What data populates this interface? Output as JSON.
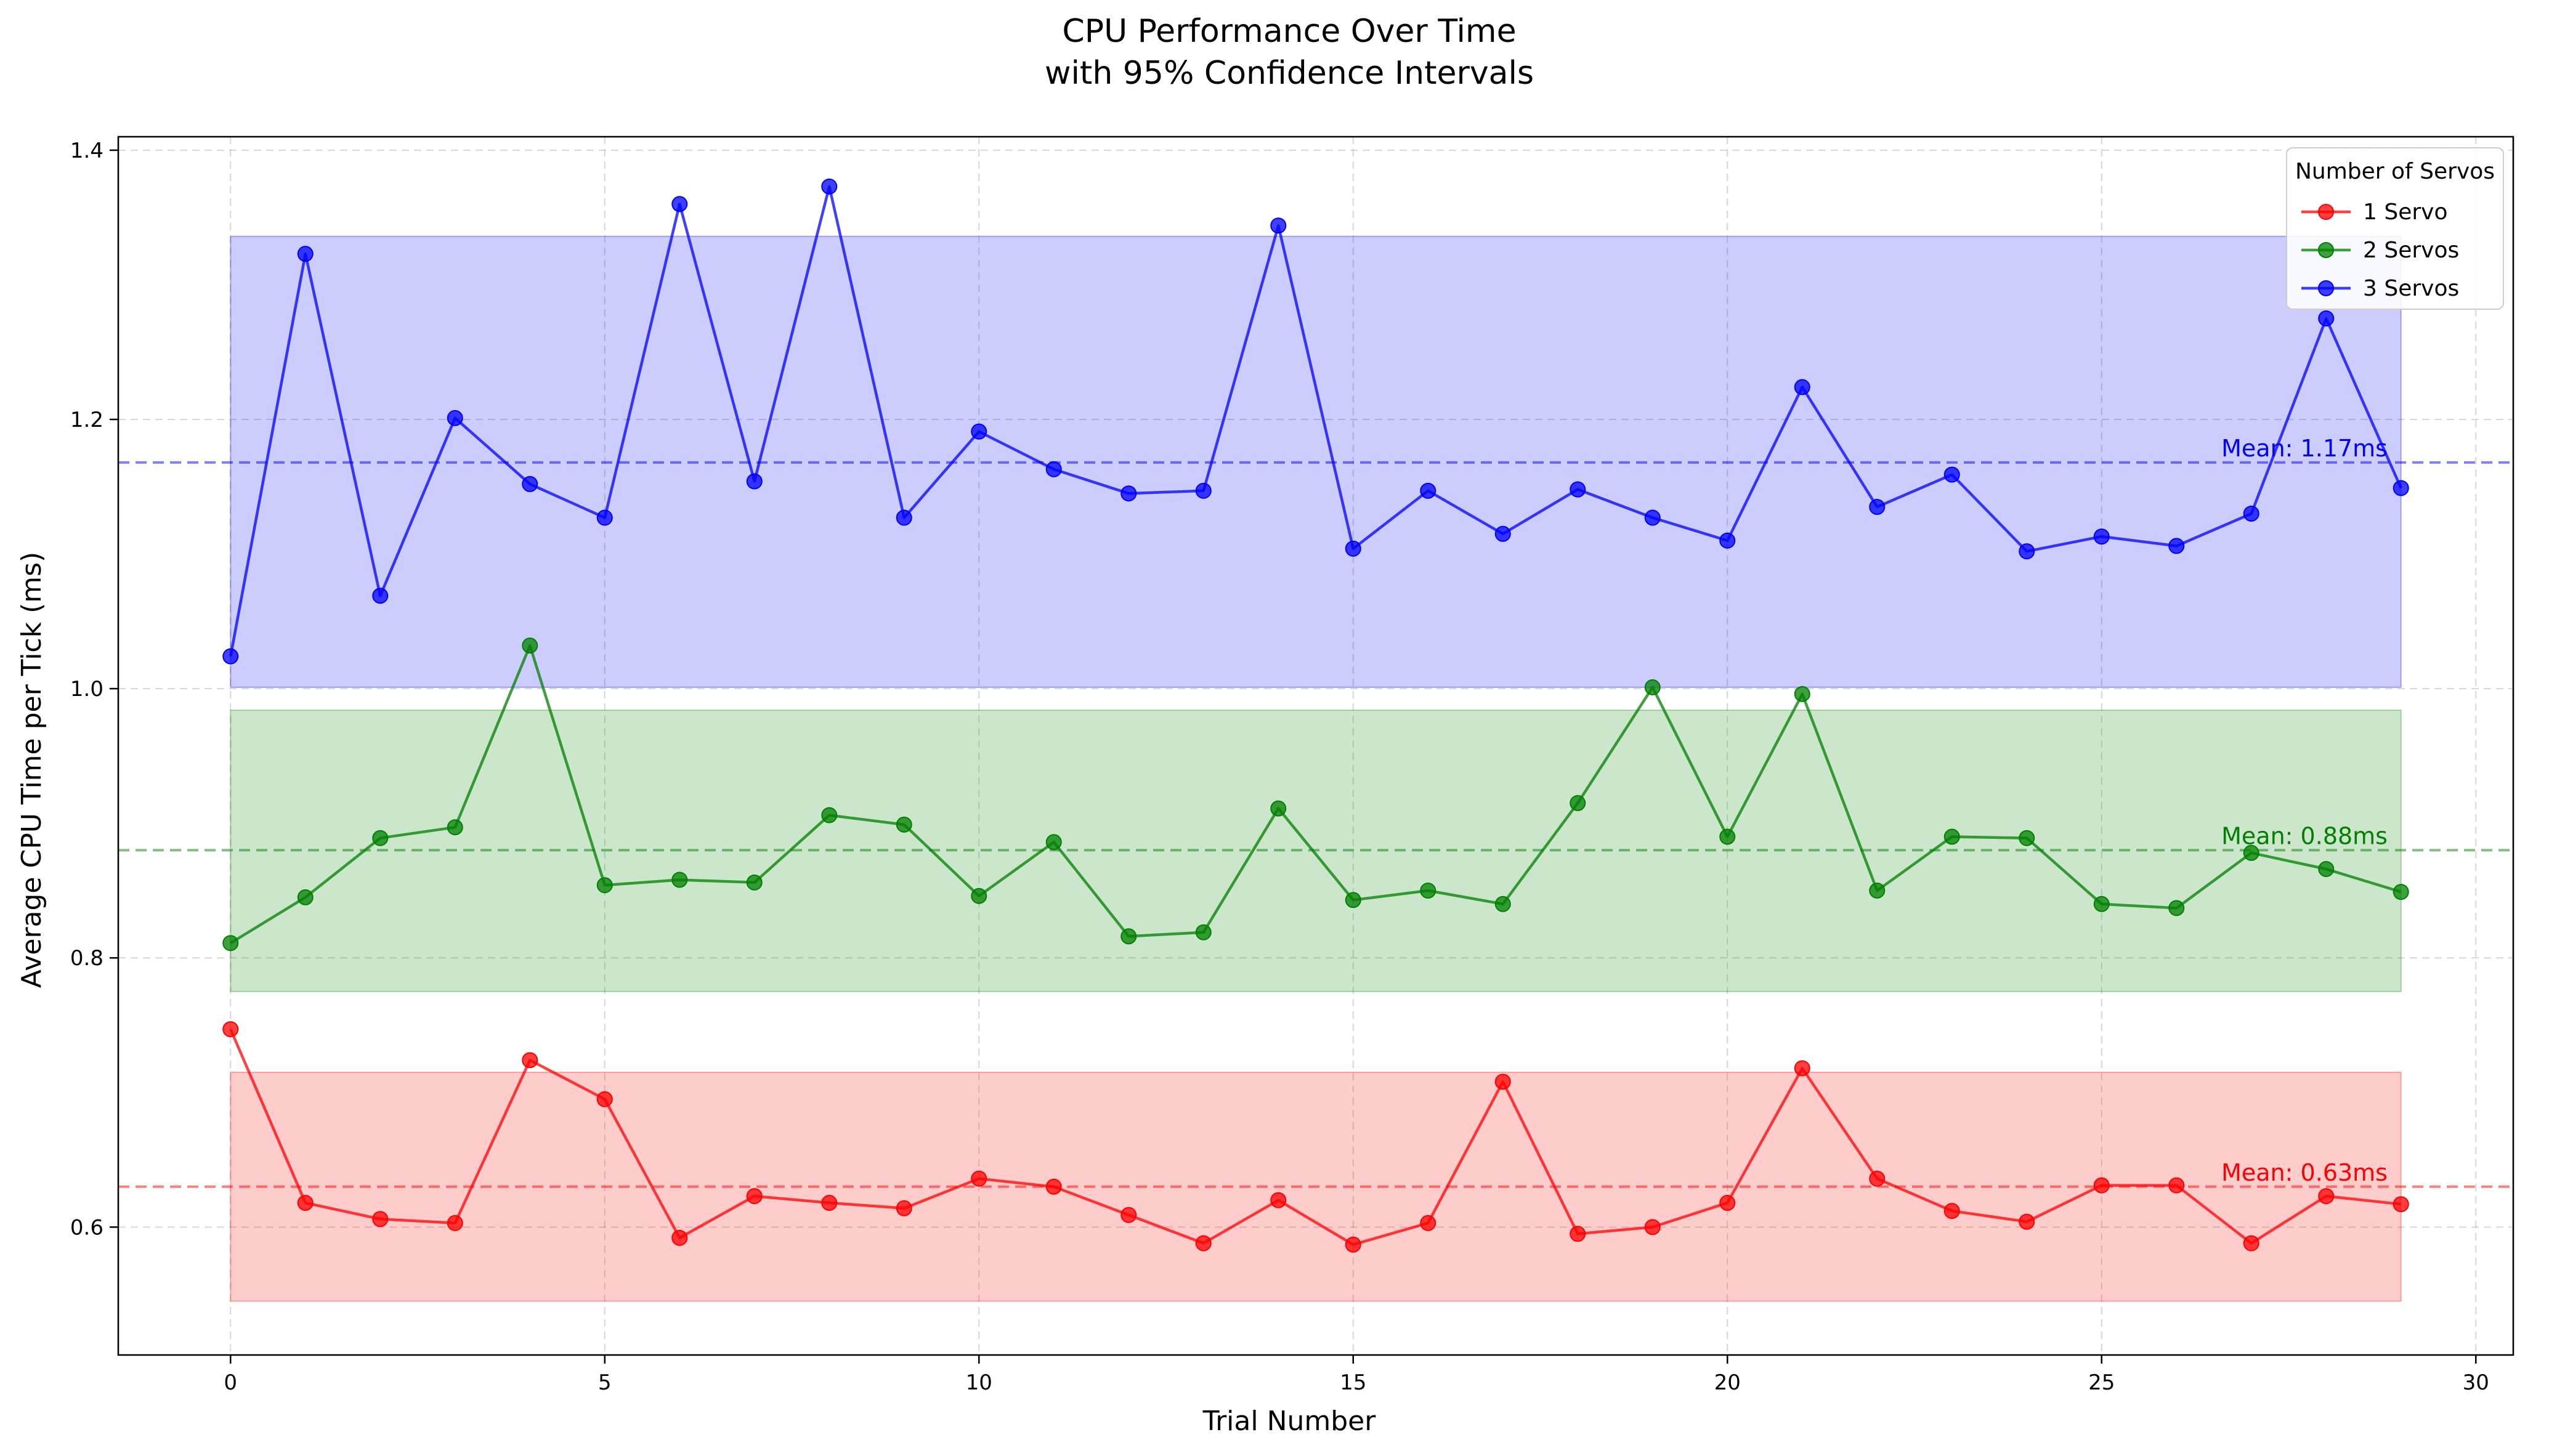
{
  "chart_data": {
    "type": "line",
    "title": "CPU Performance Over Time",
    "subtitle": "with 95% Confidence Intervals",
    "xlabel": "Trial Number",
    "ylabel": "Average CPU Time per Tick (ms)",
    "xlim": [
      -1.5,
      30.5
    ],
    "ylim": [
      0.505,
      1.41
    ],
    "xticks": [
      0,
      5,
      10,
      15,
      20,
      25,
      30
    ],
    "yticks": [
      0.6,
      0.8,
      1.0,
      1.2,
      1.4
    ],
    "xtick_labels": [
      "0",
      "5",
      "10",
      "15",
      "20",
      "25",
      "30"
    ],
    "ytick_labels": [
      "0.6",
      "0.8",
      "1.0",
      "1.2",
      "1.4"
    ],
    "grid": true,
    "legend": {
      "title": "Number of Servos",
      "placement": "top-right"
    },
    "x": [
      0,
      1,
      2,
      3,
      4,
      5,
      6,
      7,
      8,
      9,
      10,
      11,
      12,
      13,
      14,
      15,
      16,
      17,
      18,
      19,
      20,
      21,
      22,
      23,
      24,
      25,
      26,
      27,
      28,
      29
    ],
    "series": [
      {
        "name": "1 Servo",
        "color": "#ff0000",
        "values": [
          0.747,
          0.618,
          0.606,
          0.603,
          0.724,
          0.695,
          0.592,
          0.623,
          0.618,
          0.614,
          0.636,
          0.63,
          0.609,
          0.588,
          0.62,
          0.587,
          0.603,
          0.708,
          0.595,
          0.6,
          0.618,
          0.718,
          0.636,
          0.612,
          0.604,
          0.631,
          0.631,
          0.588,
          0.623,
          0.617
        ],
        "mean": 0.63,
        "mean_label": "Mean: 0.63ms",
        "ci": [
          0.545,
          0.715
        ]
      },
      {
        "name": "2 Servos",
        "color": "#008000",
        "values": [
          0.811,
          0.845,
          0.889,
          0.897,
          1.032,
          0.854,
          0.858,
          0.856,
          0.906,
          0.899,
          0.846,
          0.886,
          0.816,
          0.819,
          0.911,
          0.843,
          0.85,
          0.84,
          0.915,
          1.001,
          0.89,
          0.996,
          0.85,
          0.89,
          0.889,
          0.84,
          0.837,
          0.878,
          0.866,
          0.849
        ],
        "mean": 0.88,
        "mean_label": "Mean: 0.88ms",
        "ci": [
          0.775,
          0.984
        ]
      },
      {
        "name": "3 Servos",
        "color": "#0000ff",
        "values": [
          1.024,
          1.323,
          1.069,
          1.201,
          1.152,
          1.127,
          1.36,
          1.154,
          1.373,
          1.127,
          1.191,
          1.163,
          1.145,
          1.147,
          1.344,
          1.104,
          1.147,
          1.115,
          1.148,
          1.127,
          1.11,
          1.224,
          1.135,
          1.159,
          1.102,
          1.113,
          1.106,
          1.13,
          1.275,
          1.149
        ],
        "mean": 1.168,
        "mean_label": "Mean: 1.17ms",
        "ci": [
          1.001,
          1.336
        ]
      }
    ]
  }
}
